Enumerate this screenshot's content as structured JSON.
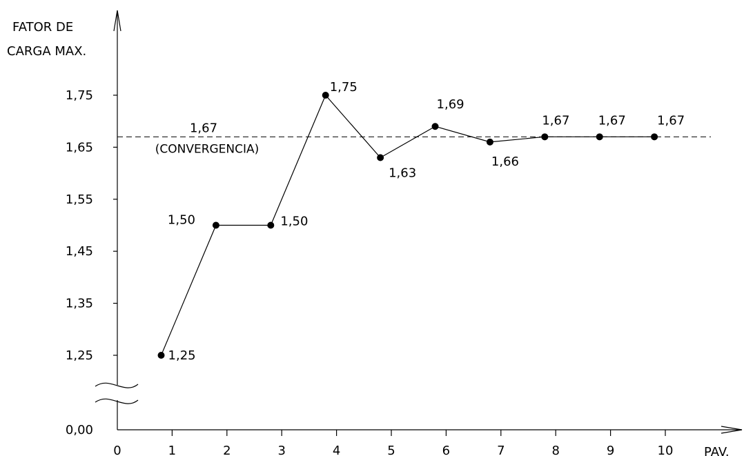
{
  "chart_data": {
    "type": "line",
    "ylabel_lines": [
      "FATOR DE",
      "CARGA MAX."
    ],
    "xlabel": "PAV.",
    "x_ticks": [
      "0",
      "1",
      "2",
      "3",
      "4",
      "5",
      "6",
      "7",
      "8",
      "9",
      "10"
    ],
    "y_ticks": [
      "0,00",
      "1,25",
      "1,35",
      "1,45",
      "1,55",
      "1,65",
      "1,75"
    ],
    "y_tick_values": [
      0,
      1.25,
      1.35,
      1.45,
      1.55,
      1.65,
      1.75
    ],
    "y_axis_break": true,
    "grid": false,
    "series": [
      {
        "x": [
          0.8,
          1.8,
          2.8,
          3.8,
          4.8,
          5.8,
          6.8,
          7.8,
          8.8,
          9.8
        ],
        "values": [
          1.25,
          1.5,
          1.5,
          1.75,
          1.63,
          1.69,
          1.66,
          1.67,
          1.67,
          1.67
        ],
        "labels": [
          "1,25",
          "1,50",
          "1,50",
          "1,75",
          "1,63",
          "1,69",
          "1,66",
          "1,67",
          "1,67",
          "1,67"
        ]
      }
    ],
    "reference_line": {
      "value": 1.67,
      "label": "1,67",
      "sublabel": "(CONVERGENCIA)",
      "style": "dashed"
    },
    "colors": {
      "line": "#000000",
      "marker": "#000000"
    }
  }
}
